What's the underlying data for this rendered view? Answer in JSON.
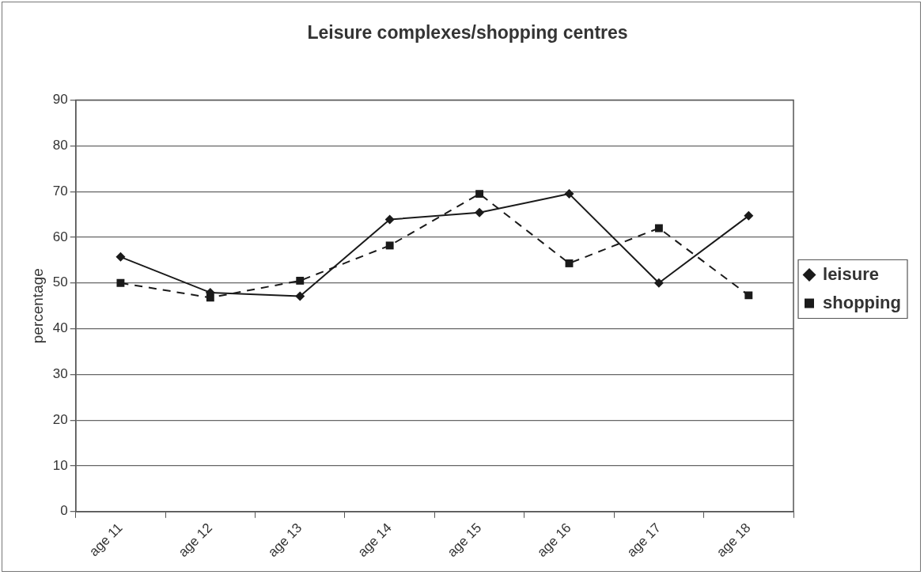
{
  "chart_data": {
    "type": "line",
    "title": "Leisure complexes/shopping centres",
    "ylabel": "percentage",
    "categories": [
      "age 11",
      "age 12",
      "age 13",
      "age 14",
      "age 15",
      "age 16",
      "age 17",
      "age 18"
    ],
    "series": [
      {
        "name": "leisure",
        "color": "#1a1a1a",
        "marker": "diamond",
        "line_style": "solid",
        "values": [
          55.7,
          47.9,
          47.1,
          63.9,
          65.4,
          69.5,
          50,
          64.7
        ]
      },
      {
        "name": "shopping",
        "color": "#1a1a1a",
        "marker": "square",
        "line_style": "dashed",
        "values": [
          50,
          46.8,
          50.5,
          58.2,
          69.5,
          54.3,
          62,
          47.3
        ]
      }
    ],
    "ylim": [
      0,
      90
    ],
    "yticks": [
      0,
      10,
      20,
      30,
      40,
      50,
      60,
      70,
      80,
      90
    ],
    "grid": "y",
    "legend": "right"
  }
}
